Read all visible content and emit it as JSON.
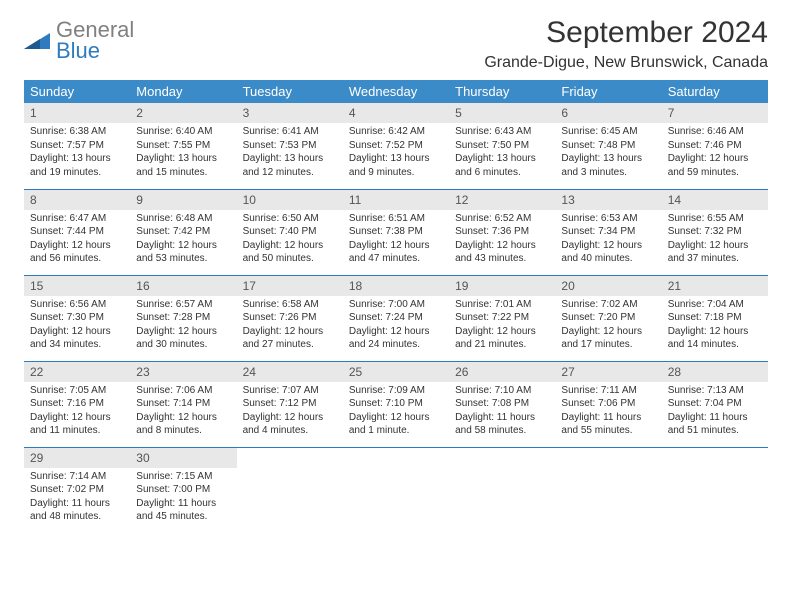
{
  "logo": {
    "gray": "General",
    "blue": "Blue"
  },
  "header": {
    "month_title": "September 2024",
    "location": "Grande-Digue, New Brunswick, Canada"
  },
  "colors": {
    "header_bg": "#3b8bc9",
    "header_text": "#ffffff",
    "daynum_bg": "#e8e8e8",
    "row_divider": "#2f7bbf",
    "logo_blue": "#2f7bbf",
    "logo_gray": "#808080"
  },
  "weekdays": [
    "Sunday",
    "Monday",
    "Tuesday",
    "Wednesday",
    "Thursday",
    "Friday",
    "Saturday"
  ],
  "weeks": [
    [
      {
        "day": "1",
        "sunrise": "Sunrise: 6:38 AM",
        "sunset": "Sunset: 7:57 PM",
        "daylight1": "Daylight: 13 hours",
        "daylight2": "and 19 minutes."
      },
      {
        "day": "2",
        "sunrise": "Sunrise: 6:40 AM",
        "sunset": "Sunset: 7:55 PM",
        "daylight1": "Daylight: 13 hours",
        "daylight2": "and 15 minutes."
      },
      {
        "day": "3",
        "sunrise": "Sunrise: 6:41 AM",
        "sunset": "Sunset: 7:53 PM",
        "daylight1": "Daylight: 13 hours",
        "daylight2": "and 12 minutes."
      },
      {
        "day": "4",
        "sunrise": "Sunrise: 6:42 AM",
        "sunset": "Sunset: 7:52 PM",
        "daylight1": "Daylight: 13 hours",
        "daylight2": "and 9 minutes."
      },
      {
        "day": "5",
        "sunrise": "Sunrise: 6:43 AM",
        "sunset": "Sunset: 7:50 PM",
        "daylight1": "Daylight: 13 hours",
        "daylight2": "and 6 minutes."
      },
      {
        "day": "6",
        "sunrise": "Sunrise: 6:45 AM",
        "sunset": "Sunset: 7:48 PM",
        "daylight1": "Daylight: 13 hours",
        "daylight2": "and 3 minutes."
      },
      {
        "day": "7",
        "sunrise": "Sunrise: 6:46 AM",
        "sunset": "Sunset: 7:46 PM",
        "daylight1": "Daylight: 12 hours",
        "daylight2": "and 59 minutes."
      }
    ],
    [
      {
        "day": "8",
        "sunrise": "Sunrise: 6:47 AM",
        "sunset": "Sunset: 7:44 PM",
        "daylight1": "Daylight: 12 hours",
        "daylight2": "and 56 minutes."
      },
      {
        "day": "9",
        "sunrise": "Sunrise: 6:48 AM",
        "sunset": "Sunset: 7:42 PM",
        "daylight1": "Daylight: 12 hours",
        "daylight2": "and 53 minutes."
      },
      {
        "day": "10",
        "sunrise": "Sunrise: 6:50 AM",
        "sunset": "Sunset: 7:40 PM",
        "daylight1": "Daylight: 12 hours",
        "daylight2": "and 50 minutes."
      },
      {
        "day": "11",
        "sunrise": "Sunrise: 6:51 AM",
        "sunset": "Sunset: 7:38 PM",
        "daylight1": "Daylight: 12 hours",
        "daylight2": "and 47 minutes."
      },
      {
        "day": "12",
        "sunrise": "Sunrise: 6:52 AM",
        "sunset": "Sunset: 7:36 PM",
        "daylight1": "Daylight: 12 hours",
        "daylight2": "and 43 minutes."
      },
      {
        "day": "13",
        "sunrise": "Sunrise: 6:53 AM",
        "sunset": "Sunset: 7:34 PM",
        "daylight1": "Daylight: 12 hours",
        "daylight2": "and 40 minutes."
      },
      {
        "day": "14",
        "sunrise": "Sunrise: 6:55 AM",
        "sunset": "Sunset: 7:32 PM",
        "daylight1": "Daylight: 12 hours",
        "daylight2": "and 37 minutes."
      }
    ],
    [
      {
        "day": "15",
        "sunrise": "Sunrise: 6:56 AM",
        "sunset": "Sunset: 7:30 PM",
        "daylight1": "Daylight: 12 hours",
        "daylight2": "and 34 minutes."
      },
      {
        "day": "16",
        "sunrise": "Sunrise: 6:57 AM",
        "sunset": "Sunset: 7:28 PM",
        "daylight1": "Daylight: 12 hours",
        "daylight2": "and 30 minutes."
      },
      {
        "day": "17",
        "sunrise": "Sunrise: 6:58 AM",
        "sunset": "Sunset: 7:26 PM",
        "daylight1": "Daylight: 12 hours",
        "daylight2": "and 27 minutes."
      },
      {
        "day": "18",
        "sunrise": "Sunrise: 7:00 AM",
        "sunset": "Sunset: 7:24 PM",
        "daylight1": "Daylight: 12 hours",
        "daylight2": "and 24 minutes."
      },
      {
        "day": "19",
        "sunrise": "Sunrise: 7:01 AM",
        "sunset": "Sunset: 7:22 PM",
        "daylight1": "Daylight: 12 hours",
        "daylight2": "and 21 minutes."
      },
      {
        "day": "20",
        "sunrise": "Sunrise: 7:02 AM",
        "sunset": "Sunset: 7:20 PM",
        "daylight1": "Daylight: 12 hours",
        "daylight2": "and 17 minutes."
      },
      {
        "day": "21",
        "sunrise": "Sunrise: 7:04 AM",
        "sunset": "Sunset: 7:18 PM",
        "daylight1": "Daylight: 12 hours",
        "daylight2": "and 14 minutes."
      }
    ],
    [
      {
        "day": "22",
        "sunrise": "Sunrise: 7:05 AM",
        "sunset": "Sunset: 7:16 PM",
        "daylight1": "Daylight: 12 hours",
        "daylight2": "and 11 minutes."
      },
      {
        "day": "23",
        "sunrise": "Sunrise: 7:06 AM",
        "sunset": "Sunset: 7:14 PM",
        "daylight1": "Daylight: 12 hours",
        "daylight2": "and 8 minutes."
      },
      {
        "day": "24",
        "sunrise": "Sunrise: 7:07 AM",
        "sunset": "Sunset: 7:12 PM",
        "daylight1": "Daylight: 12 hours",
        "daylight2": "and 4 minutes."
      },
      {
        "day": "25",
        "sunrise": "Sunrise: 7:09 AM",
        "sunset": "Sunset: 7:10 PM",
        "daylight1": "Daylight: 12 hours",
        "daylight2": "and 1 minute."
      },
      {
        "day": "26",
        "sunrise": "Sunrise: 7:10 AM",
        "sunset": "Sunset: 7:08 PM",
        "daylight1": "Daylight: 11 hours",
        "daylight2": "and 58 minutes."
      },
      {
        "day": "27",
        "sunrise": "Sunrise: 7:11 AM",
        "sunset": "Sunset: 7:06 PM",
        "daylight1": "Daylight: 11 hours",
        "daylight2": "and 55 minutes."
      },
      {
        "day": "28",
        "sunrise": "Sunrise: 7:13 AM",
        "sunset": "Sunset: 7:04 PM",
        "daylight1": "Daylight: 11 hours",
        "daylight2": "and 51 minutes."
      }
    ],
    [
      {
        "day": "29",
        "sunrise": "Sunrise: 7:14 AM",
        "sunset": "Sunset: 7:02 PM",
        "daylight1": "Daylight: 11 hours",
        "daylight2": "and 48 minutes."
      },
      {
        "day": "30",
        "sunrise": "Sunrise: 7:15 AM",
        "sunset": "Sunset: 7:00 PM",
        "daylight1": "Daylight: 11 hours",
        "daylight2": "and 45 minutes."
      },
      null,
      null,
      null,
      null,
      null
    ]
  ]
}
